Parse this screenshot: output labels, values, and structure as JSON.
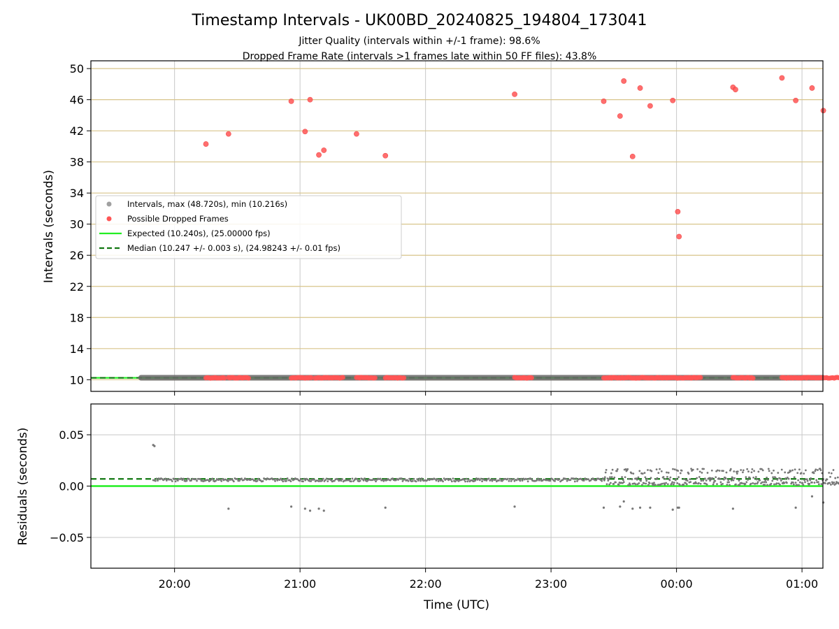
{
  "chart_data": {
    "type": "scatter",
    "title": "Timestamp Intervals - UK00BD_20240825_194804_173041",
    "subtitle_lines": [
      "Jitter Quality (intervals within +/-1 frame): 98.6%",
      "Dropped Frame Rate (intervals >1 frames late within 50 FF files): 43.8%"
    ],
    "xlabel": "Time (UTC)",
    "x_ticks": [
      "20:00",
      "21:00",
      "22:00",
      "23:00",
      "00:00",
      "01:00"
    ],
    "x_range_minutes_after_1948": [
      -28,
      322
    ],
    "top_panel": {
      "ylabel": "Intervals (seconds)",
      "ylim": [
        8.5,
        51
      ],
      "y_ticks": [
        10,
        14,
        18,
        22,
        26,
        30,
        34,
        38,
        42,
        46,
        50
      ],
      "grid": true,
      "legend_placement": "center-left",
      "legend": [
        {
          "label": "Intervals, max (48.720s), min (10.216s)",
          "kind": "marker",
          "color": "#a0a0a0"
        },
        {
          "label": "Possible Dropped Frames",
          "kind": "marker",
          "color": "#ff5555"
        },
        {
          "label": "Expected (10.240s), (25.00000 fps)",
          "kind": "line",
          "color": "#22ee22"
        },
        {
          "label": "Median (10.247 +/- 0.003 s), (24.98243 +/- 0.01 fps)",
          "kind": "dashed",
          "color": "#117711"
        }
      ],
      "expected_value": 10.24,
      "median_value": 10.247,
      "interval_span": [
        -4,
        322
      ],
      "dropped_frames": [
        {
          "t": 20.25,
          "v": 40.3
        },
        {
          "t": 20.43,
          "v": 41.6
        },
        {
          "t": 20.93,
          "v": 45.8
        },
        {
          "t": 21.04,
          "v": 41.9
        },
        {
          "t": 21.08,
          "v": 46.0
        },
        {
          "t": 21.15,
          "v": 38.9
        },
        {
          "t": 21.19,
          "v": 39.5
        },
        {
          "t": 21.45,
          "v": 41.6
        },
        {
          "t": 21.68,
          "v": 38.8
        },
        {
          "t": 22.71,
          "v": 46.7
        },
        {
          "t": 23.42,
          "v": 45.8
        },
        {
          "t": 23.55,
          "v": 43.9
        },
        {
          "t": 23.58,
          "v": 48.4
        },
        {
          "t": 23.65,
          "v": 38.7
        },
        {
          "t": 23.71,
          "v": 47.5
        },
        {
          "t": 23.79,
          "v": 45.2
        },
        {
          "t": 23.97,
          "v": 45.9
        },
        {
          "t": 24.01,
          "v": 31.6
        },
        {
          "t": 24.02,
          "v": 28.4
        },
        {
          "t": 24.45,
          "v": 47.6
        },
        {
          "t": 24.47,
          "v": 47.3
        },
        {
          "t": 24.84,
          "v": 48.8
        },
        {
          "t": 24.95,
          "v": 45.9
        },
        {
          "t": 25.08,
          "v": 47.5
        },
        {
          "t": 25.17,
          "v": 44.6
        }
      ],
      "dropped_at_baseline_ranges": [
        [
          20.25,
          20.4
        ],
        [
          20.43,
          20.59
        ],
        [
          20.93,
          21.1
        ],
        [
          21.12,
          21.35
        ],
        [
          21.45,
          21.6
        ],
        [
          21.68,
          21.83
        ],
        [
          22.71,
          22.85
        ],
        [
          23.42,
          23.97
        ],
        [
          23.97,
          24.2
        ],
        [
          24.45,
          24.62
        ],
        [
          24.84,
          25.35
        ]
      ]
    },
    "bottom_panel": {
      "ylabel": "Residuals (seconds)",
      "ylim": [
        -0.08,
        0.08
      ],
      "y_ticks": [
        "0.05",
        "0.00",
        "−0.05"
      ],
      "grid": true,
      "expected_residual": 0.0,
      "median_residual": 0.007,
      "outliers": [
        {
          "t": 19.83,
          "v": 0.04
        },
        {
          "t": 19.84,
          "v": 0.039
        },
        {
          "t": 20.43,
          "v": -0.022
        },
        {
          "t": 20.93,
          "v": -0.02
        },
        {
          "t": 21.04,
          "v": -0.022
        },
        {
          "t": 21.08,
          "v": -0.024
        },
        {
          "t": 21.15,
          "v": -0.022
        },
        {
          "t": 21.19,
          "v": -0.024
        },
        {
          "t": 21.68,
          "v": -0.021
        },
        {
          "t": 22.71,
          "v": -0.02
        },
        {
          "t": 23.42,
          "v": -0.021
        },
        {
          "t": 23.55,
          "v": -0.02
        },
        {
          "t": 23.58,
          "v": -0.015
        },
        {
          "t": 23.65,
          "v": -0.022
        },
        {
          "t": 23.71,
          "v": -0.021
        },
        {
          "t": 23.79,
          "v": -0.021
        },
        {
          "t": 23.97,
          "v": -0.023
        },
        {
          "t": 24.01,
          "v": -0.021
        },
        {
          "t": 24.02,
          "v": -0.021
        },
        {
          "t": 24.45,
          "v": -0.022
        },
        {
          "t": 24.95,
          "v": -0.021
        },
        {
          "t": 25.08,
          "v": -0.01
        },
        {
          "t": 25.17,
          "v": -0.016
        }
      ],
      "cluster_segments": [
        {
          "from": 19.83,
          "to": 23.42,
          "base": 0.006,
          "spread": 0.003,
          "density": "sparse"
        },
        {
          "from": 23.42,
          "to": 25.36,
          "base": 0.001,
          "spread": 0.016,
          "density": "dense"
        }
      ]
    },
    "colors": {
      "interval_marker": "#a0a0a0",
      "dropped_marker": "#ff5555",
      "expected_line": "#22ee22",
      "median_line": "#117711",
      "top_grid": "#d8c48a",
      "vertical_grid": "#c8c8c8",
      "residual_marker": "#777777"
    }
  }
}
